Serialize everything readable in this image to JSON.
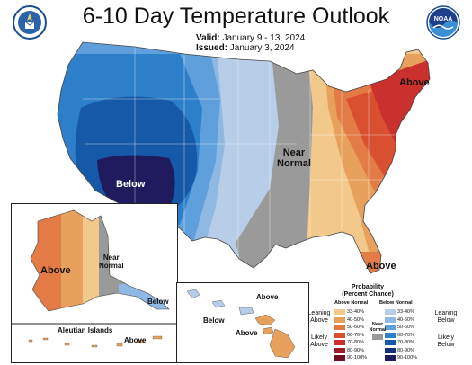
{
  "title": "6-10 Day Temperature Outlook",
  "valid": {
    "label": "Valid:",
    "dates": "January 9 - 13, 2024"
  },
  "issued": {
    "label": "Issued:",
    "date": "January 3, 2024"
  },
  "icons": {
    "left_seal": "commerce-seal-icon",
    "right_logo": "noaa-logo-icon"
  },
  "map_labels": {
    "below": "Below",
    "near_normal_line1": "Near",
    "near_normal_line2": "Normal",
    "above_ne": "Above",
    "above_fl": "Above"
  },
  "alaska": {
    "above": "Above",
    "near1": "Near",
    "near2": "Normal",
    "below": "Below",
    "aleutian": "Aleutian Islands",
    "aleutian_above": "Above"
  },
  "hawaii": {
    "above_top": "Above",
    "below": "Below",
    "above_bottom": "Above"
  },
  "legend": {
    "title_line1": "Probability",
    "title_line2": "(Percent Chance)",
    "above_head": "Above Normal",
    "below_head": "Below Normal",
    "near_line1": "Near",
    "near_line2": "Normal",
    "leaning_above_1": "Leaning",
    "leaning_above_2": "Above",
    "likely_above_1": "Likely",
    "likely_above_2": "Above",
    "leaning_below_1": "Leaning",
    "leaning_below_2": "Below",
    "likely_below_1": "Likely",
    "likely_below_2": "Below",
    "above_scale": [
      {
        "pct": "33-40%",
        "color": "#f3c98b"
      },
      {
        "pct": "40-50%",
        "color": "#e8a15c"
      },
      {
        "pct": "50-60%",
        "color": "#e27b45"
      },
      {
        "pct": "60-70%",
        "color": "#d8502f"
      },
      {
        "pct": "70-80%",
        "color": "#c9302e"
      },
      {
        "pct": "80-90%",
        "color": "#9e1c26"
      },
      {
        "pct": "90-100%",
        "color": "#6e0f1c"
      }
    ],
    "below_scale": [
      {
        "pct": "33-40%",
        "color": "#b7cde8"
      },
      {
        "pct": "40-50%",
        "color": "#8fb8e3"
      },
      {
        "pct": "50-60%",
        "color": "#5fa0dc"
      },
      {
        "pct": "60-70%",
        "color": "#2e7fca"
      },
      {
        "pct": "70-80%",
        "color": "#1659a8"
      },
      {
        "pct": "80-90%",
        "color": "#17307d"
      },
      {
        "pct": "90-100%",
        "color": "#201a5e"
      }
    ],
    "near_color": "#9a9a9a"
  }
}
